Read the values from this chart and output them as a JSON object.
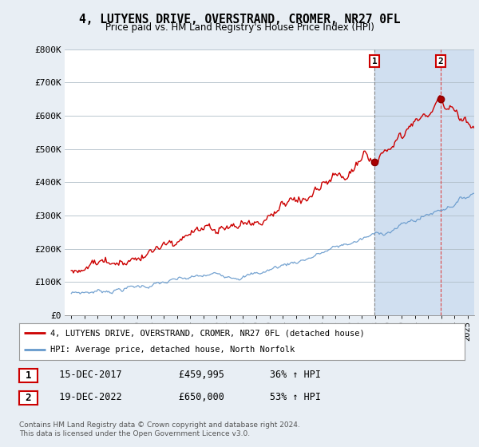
{
  "title": "4, LUTYENS DRIVE, OVERSTRAND, CROMER, NR27 0FL",
  "subtitle": "Price paid vs. HM Land Registry's House Price Index (HPI)",
  "ylabel_vals": [
    "£0",
    "£100K",
    "£200K",
    "£300K",
    "£400K",
    "£500K",
    "£600K",
    "£700K",
    "£800K"
  ],
  "ylim": [
    0,
    800000
  ],
  "xlim_start": 1994.5,
  "xlim_end": 2025.5,
  "red_line_color": "#cc0000",
  "blue_line_color": "#6699cc",
  "sale1_x": 2017.96,
  "sale1_y": 459995,
  "sale2_x": 2022.96,
  "sale2_y": 650000,
  "legend_red_label": "4, LUTYENS DRIVE, OVERSTRAND, CROMER, NR27 0FL (detached house)",
  "legend_blue_label": "HPI: Average price, detached house, North Norfolk",
  "annotation1_label": "1",
  "annotation2_label": "2",
  "table_row1": [
    "1",
    "15-DEC-2017",
    "£459,995",
    "36% ↑ HPI"
  ],
  "table_row2": [
    "2",
    "19-DEC-2022",
    "£650,000",
    "53% ↑ HPI"
  ],
  "footer": "Contains HM Land Registry data © Crown copyright and database right 2024.\nThis data is licensed under the Open Government Licence v3.0.",
  "background_color": "#e8eef4",
  "plot_bg_color": "#ffffff",
  "shade_color": "#d0dff0"
}
